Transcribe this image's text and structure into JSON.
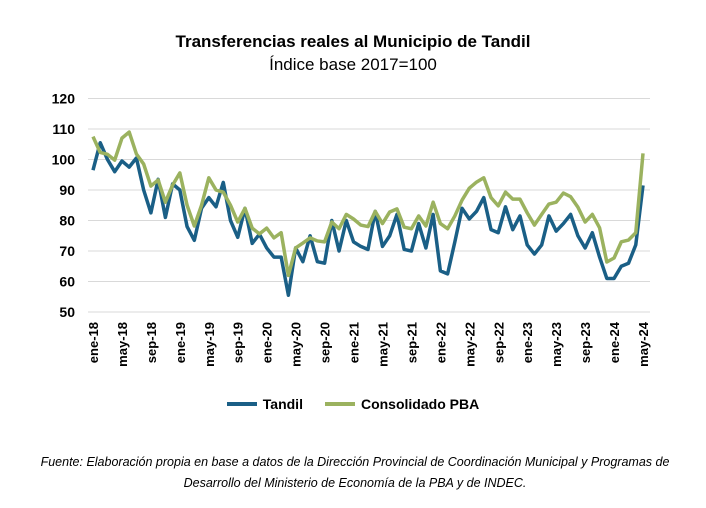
{
  "chart_data": {
    "type": "line",
    "title": "Transferencias reales al Municipio de Tandil",
    "subtitle": "Índice base 2017=100",
    "xlabel": "",
    "ylabel": "",
    "ylim": [
      50,
      120
    ],
    "yticks": [
      50,
      60,
      70,
      80,
      90,
      100,
      110,
      120
    ],
    "grid": true,
    "legend_position": "bottom",
    "x_start": "ene-18",
    "x_end": "may-24",
    "x_frequency": "monthly",
    "x_tick_labels": [
      "ene-18",
      "may-18",
      "sep-18",
      "ene-19",
      "may-19",
      "sep-19",
      "ene-20",
      "may-20",
      "sep-20",
      "ene-21",
      "may-21",
      "sep-21",
      "ene-22",
      "may-22",
      "sep-22",
      "ene-23",
      "may-23",
      "sep-23",
      "ene-24",
      "may-24"
    ],
    "series": [
      {
        "name": "Tandil",
        "color": "#1a5f86",
        "values": [
          96.5,
          105.5,
          100,
          96,
          99.5,
          97.5,
          100.5,
          90,
          82.5,
          93.5,
          81,
          92,
          90,
          78,
          73.5,
          84,
          87.5,
          84.5,
          92.5,
          80,
          74.5,
          84,
          72.5,
          75.5,
          71,
          68,
          68,
          55.5,
          71,
          66.5,
          75,
          66.5,
          66,
          80,
          70,
          80,
          73,
          71.5,
          70.5,
          83,
          71.5,
          75,
          82,
          70.5,
          70,
          79,
          71,
          82,
          63.5,
          62.5,
          73,
          84,
          80.5,
          83,
          87.5,
          77,
          76,
          84.5,
          77,
          81.5,
          72,
          69,
          72,
          81.5,
          76.5,
          79,
          82,
          75,
          71,
          76,
          68,
          61,
          61,
          65,
          66,
          72,
          91.5
        ]
      },
      {
        "name": "Consolidado PBA",
        "color": "#9bb25f",
        "values": [
          107.5,
          102.3,
          101.7,
          99.8,
          107,
          109,
          101.8,
          98.5,
          91.3,
          93.3,
          86,
          91.6,
          95.6,
          85,
          78.2,
          85,
          94,
          90,
          89.3,
          85,
          79.5,
          84,
          77.5,
          75.6,
          77.5,
          74.3,
          76,
          62,
          71,
          72.6,
          74.3,
          73.3,
          73,
          79.5,
          77.3,
          82,
          80.5,
          78.5,
          78,
          83,
          79,
          82.8,
          83.8,
          77.8,
          77.3,
          81.5,
          78.2,
          86,
          79,
          77.3,
          81.5,
          86.7,
          90.6,
          92.6,
          94,
          87.5,
          84.8,
          89.3,
          87,
          87,
          82.5,
          78.5,
          82,
          85.4,
          86,
          89,
          87.8,
          84.4,
          79.5,
          82,
          77.6,
          66.4,
          67.7,
          73,
          73.6,
          76,
          102
        ]
      }
    ]
  },
  "footnote": "Fuente: Elaboración propia en base a datos de la Dirección Provincial de Coordinación Municipal y Programas de Desarrollo del Ministerio de Economía de la PBA y de INDEC."
}
